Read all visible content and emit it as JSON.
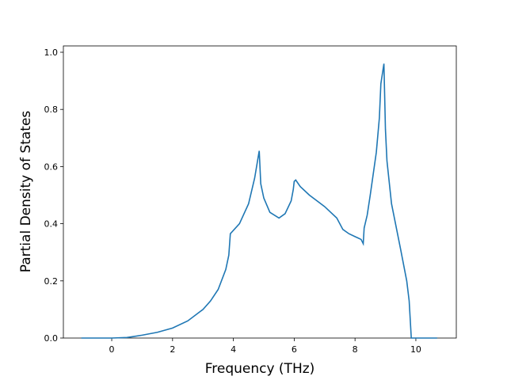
{
  "chart_data": {
    "type": "line",
    "title": "",
    "xlabel": "Frequency (THz)",
    "ylabel": "Partial Density of States",
    "xlim": [
      -1.59,
      11.33
    ],
    "ylim": [
      0,
      1.0
    ],
    "xticks": [
      0,
      2,
      4,
      6,
      8,
      10
    ],
    "yticks": [
      0.0,
      0.2,
      0.4,
      0.6,
      0.8,
      1.0
    ],
    "ytick_labels": [
      "0.0",
      "0.2",
      "0.4",
      "0.6",
      "0.8",
      "1.0"
    ],
    "grid": false,
    "color": "#1f77b4",
    "series": [
      {
        "x": [
          -1.0,
          0.0,
          0.5,
          0.7,
          1.0,
          1.5,
          2.0,
          2.5,
          3.0,
          3.25,
          3.5,
          3.75,
          3.85,
          3.9,
          4.2,
          4.5,
          4.7,
          4.85,
          4.9,
          5.0,
          5.2,
          5.5,
          5.7,
          5.9,
          5.97,
          6.0,
          6.05,
          6.2,
          6.5,
          7.0,
          7.4,
          7.6,
          7.8,
          8.0,
          8.1,
          8.2,
          8.27,
          8.3,
          8.4,
          8.5,
          8.7,
          8.8,
          8.85,
          8.95,
          9.0,
          9.05,
          9.2,
          9.5,
          9.7,
          9.78,
          9.85,
          10.7
        ],
        "y": [
          0,
          0,
          0.002,
          0.005,
          0.01,
          0.02,
          0.035,
          0.06,
          0.1,
          0.13,
          0.17,
          0.24,
          0.29,
          0.365,
          0.4,
          0.47,
          0.56,
          0.655,
          0.54,
          0.49,
          0.44,
          0.42,
          0.435,
          0.48,
          0.52,
          0.548,
          0.553,
          0.53,
          0.5,
          0.46,
          0.42,
          0.38,
          0.365,
          0.355,
          0.35,
          0.345,
          0.33,
          0.385,
          0.43,
          0.5,
          0.65,
          0.77,
          0.89,
          0.96,
          0.73,
          0.62,
          0.47,
          0.31,
          0.2,
          0.13,
          0.0,
          0.0
        ]
      }
    ]
  }
}
